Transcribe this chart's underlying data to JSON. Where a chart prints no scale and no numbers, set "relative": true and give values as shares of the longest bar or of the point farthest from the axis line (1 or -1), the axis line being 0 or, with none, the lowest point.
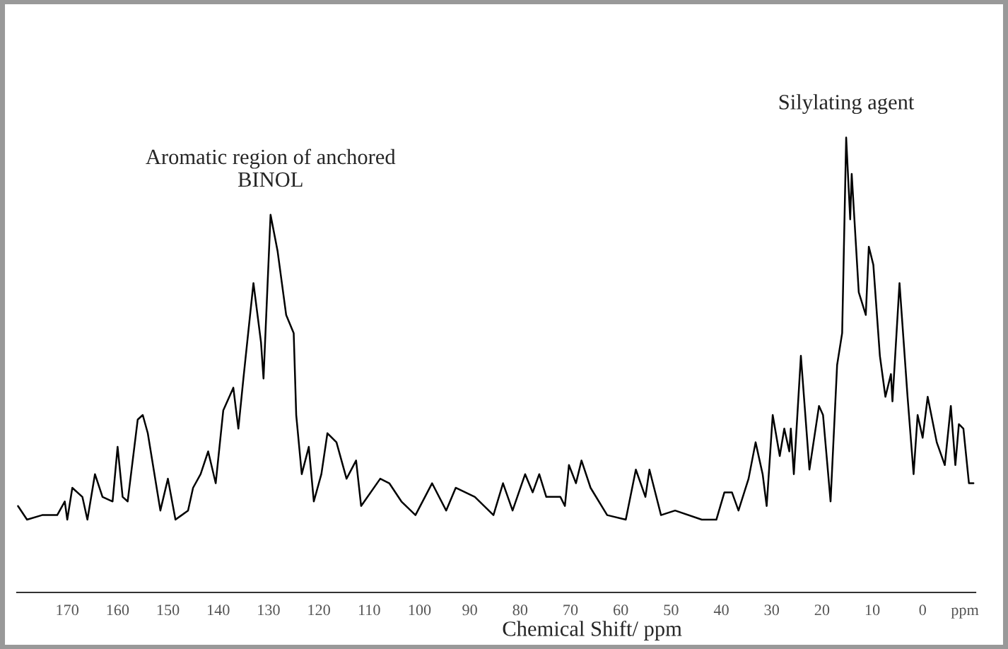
{
  "chart_data": {
    "type": "line",
    "relative": true,
    "xlabel": "Chemical Shift/ ppm",
    "xlim": [
      180,
      -10.5
    ],
    "xticks": [
      170,
      160,
      150,
      140,
      130,
      120,
      110,
      100,
      90,
      80,
      70,
      60,
      50,
      40,
      30,
      20,
      10,
      0,
      {
        "value": -8.4,
        "label": "ppm"
      }
    ],
    "annotations": [
      {
        "text": "Aromatic region of anchored\nBINOL",
        "x": 129.6,
        "y": 0.83
      },
      {
        "text": "Silylating agent",
        "x": 15.2,
        "y": 1.0
      }
    ],
    "grid": false,
    "legend": false,
    "marker": "none",
    "line_style": "solid",
    "series": [
      {
        "color": "#000000",
        "x": [
          179.8,
          178,
          175,
          172,
          170.5,
          170,
          169,
          167,
          166,
          164.5,
          163,
          161,
          160,
          159,
          158,
          156,
          155,
          154,
          151.5,
          150,
          148.5,
          146,
          145,
          143.5,
          142,
          140.5,
          139,
          137,
          136,
          135,
          133,
          131.5,
          131,
          129.6,
          128.2,
          126.5,
          125,
          124.5,
          123.4,
          122,
          121,
          119.5,
          118.3,
          116.5,
          114.5,
          112.6,
          111.6,
          107.8,
          106,
          103.6,
          100.8,
          97.5,
          94.7,
          92.8,
          89,
          85.3,
          83.4,
          81.5,
          79,
          77.5,
          76.2,
          74.8,
          72,
          71.1,
          70.3,
          68.9,
          67.8,
          66,
          62.7,
          59,
          57,
          55.1,
          54.3,
          52,
          49.2,
          43.9,
          41,
          39.4,
          37.9,
          36.6,
          34.6,
          33.2,
          31.8,
          31,
          29.8,
          28.4,
          27.5,
          26.5,
          26.2,
          25.6,
          24.2,
          22.5,
          20.6,
          19.8,
          18.3,
          17,
          16,
          15.2,
          14.4,
          14.1,
          12.7,
          11.3,
          10.7,
          9.8,
          8.5,
          7.4,
          6.3,
          6,
          4.6,
          3,
          1.8,
          1,
          0,
          -1,
          -2.8,
          -4.4,
          -5.6,
          -6.5,
          -7.2,
          -8.1,
          -9.2,
          -10.1
        ],
        "values": [
          0.19,
          0.16,
          0.17,
          0.17,
          0.2,
          0.16,
          0.23,
          0.21,
          0.16,
          0.26,
          0.21,
          0.2,
          0.32,
          0.21,
          0.2,
          0.38,
          0.39,
          0.35,
          0.18,
          0.25,
          0.16,
          0.18,
          0.23,
          0.26,
          0.31,
          0.24,
          0.4,
          0.45,
          0.36,
          0.47,
          0.68,
          0.55,
          0.47,
          0.83,
          0.75,
          0.61,
          0.57,
          0.39,
          0.26,
          0.32,
          0.2,
          0.26,
          0.35,
          0.33,
          0.25,
          0.29,
          0.19,
          0.25,
          0.24,
          0.2,
          0.17,
          0.24,
          0.18,
          0.23,
          0.21,
          0.17,
          0.24,
          0.18,
          0.26,
          0.22,
          0.26,
          0.21,
          0.21,
          0.19,
          0.28,
          0.24,
          0.29,
          0.23,
          0.17,
          0.16,
          0.27,
          0.21,
          0.27,
          0.17,
          0.18,
          0.16,
          0.16,
          0.22,
          0.22,
          0.18,
          0.25,
          0.33,
          0.26,
          0.19,
          0.39,
          0.3,
          0.36,
          0.31,
          0.36,
          0.26,
          0.52,
          0.27,
          0.41,
          0.39,
          0.2,
          0.5,
          0.57,
          1.0,
          0.82,
          0.92,
          0.66,
          0.61,
          0.76,
          0.72,
          0.52,
          0.43,
          0.48,
          0.42,
          0.68,
          0.43,
          0.26,
          0.39,
          0.34,
          0.43,
          0.33,
          0.28,
          0.41,
          0.28,
          0.37,
          0.36,
          0.24,
          0.24
        ]
      }
    ]
  }
}
